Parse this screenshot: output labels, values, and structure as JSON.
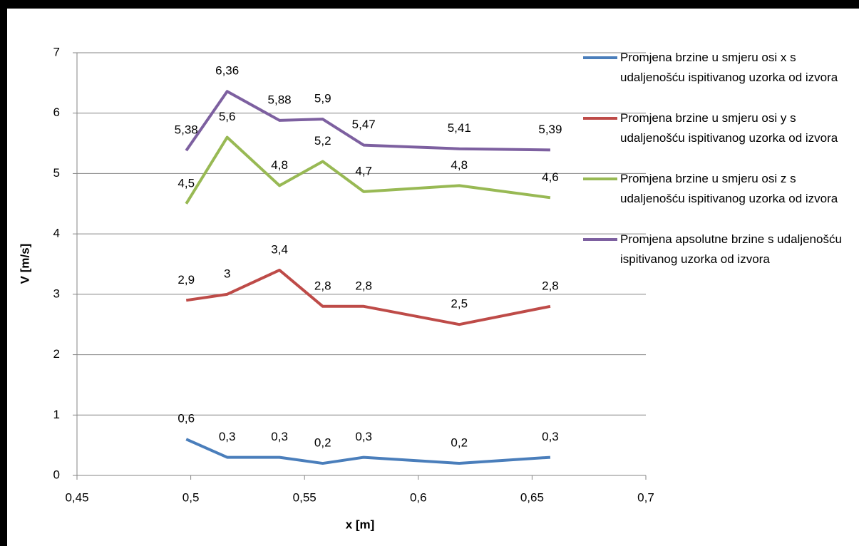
{
  "chart_data": {
    "type": "line",
    "x_label": "x [m]",
    "y_label": "V [m/s]",
    "x": [
      0.498,
      0.516,
      0.539,
      0.558,
      0.576,
      0.618,
      0.658
    ],
    "xlim": [
      0.45,
      0.7
    ],
    "xticks": [
      {
        "value": 0.45,
        "label": "0,45"
      },
      {
        "value": 0.5,
        "label": "0,5"
      },
      {
        "value": 0.55,
        "label": "0,55"
      },
      {
        "value": 0.6,
        "label": "0,6"
      },
      {
        "value": 0.65,
        "label": "0,65"
      },
      {
        "value": 0.7,
        "label": "0,7"
      }
    ],
    "ylim": [
      0,
      7
    ],
    "yticks": [
      0,
      1,
      2,
      3,
      4,
      5,
      6,
      7
    ],
    "grid": true,
    "legend": "right",
    "series": [
      {
        "name": "Promjena brzine u smjeru osi x s udaljenošću ispitivanog uzorka od izvora",
        "color": "#4a7ebb",
        "values": [
          0.6,
          0.3,
          0.3,
          0.2,
          0.3,
          0.2,
          0.3
        ],
        "value_labels": [
          "0,6",
          "0,3",
          "0,3",
          "0,2",
          "0,3",
          "0,2",
          "0,3"
        ]
      },
      {
        "name": "Promjena brzine u smjeru osi y s udaljenošću ispitivanog uzorka od izvora",
        "color": "#be4b48",
        "values": [
          2.9,
          3,
          3.4,
          2.8,
          2.8,
          2.5,
          2.8
        ],
        "value_labels": [
          "2,9",
          "3",
          "3,4",
          "2,8",
          "2,8",
          "2,5",
          "2,8"
        ]
      },
      {
        "name": "Promjena brzine u smjeru osi z s udaljenošću ispitivanog uzorka od izvora",
        "color": "#98b954",
        "values": [
          4.5,
          5.6,
          4.8,
          5.2,
          4.7,
          4.8,
          4.6
        ],
        "value_labels": [
          "4,5",
          "5,6",
          "4,8",
          "5,2",
          "4,7",
          "4,8",
          "4,6"
        ]
      },
      {
        "name": "Promjena apsolutne brzine s udaljenošću ispitivanog uzorka od izvora",
        "color": "#7d60a0",
        "values": [
          5.38,
          6.36,
          5.88,
          5.9,
          5.47,
          5.41,
          5.39
        ],
        "value_labels": [
          "5,38",
          "6,36",
          "5,88",
          "5,9",
          "5,47",
          "5,41",
          "5,39"
        ]
      }
    ]
  }
}
